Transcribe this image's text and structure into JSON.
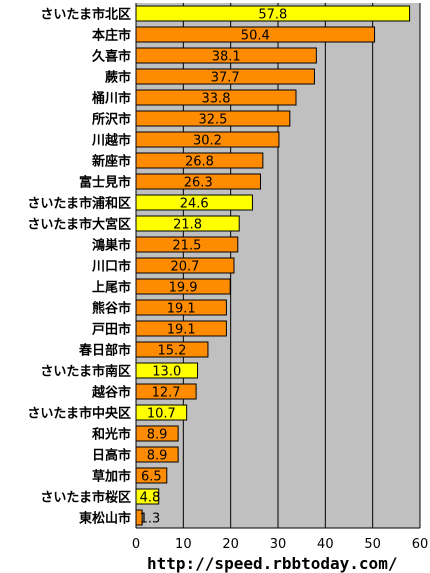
{
  "chart_data": {
    "type": "bar",
    "orientation": "horizontal",
    "categories": [
      "さいたま市北区",
      "本庄市",
      "久喜市",
      "蕨市",
      "桶川市",
      "所沢市",
      "川越市",
      "新座市",
      "富士見市",
      "さいたま市浦和区",
      "さいたま市大宮区",
      "鴻巣市",
      "川口市",
      "上尾市",
      "熊谷市",
      "戸田市",
      "春日部市",
      "さいたま市南区",
      "越谷市",
      "さいたま市中央区",
      "和光市",
      "日高市",
      "草加市",
      "さいたま市桜区",
      "東松山市"
    ],
    "values": [
      57.8,
      50.4,
      38.1,
      37.7,
      33.8,
      32.5,
      30.2,
      26.8,
      26.3,
      24.6,
      21.8,
      21.5,
      20.7,
      19.9,
      19.1,
      19.1,
      15.2,
      13.0,
      12.7,
      10.7,
      8.9,
      8.9,
      6.5,
      4.8,
      1.3
    ],
    "value_labels": [
      "57.8",
      "50.4",
      "38.1",
      "37.7",
      "33.8",
      "32.5",
      "30.2",
      "26.8",
      "26.3",
      "24.6",
      "21.8",
      "21.5",
      "20.7",
      "19.9",
      "19.1",
      "19.1",
      "15.2",
      "13.0",
      "12.7",
      "10.7",
      "8.9",
      "8.9",
      "6.5",
      "4.8",
      "1.3"
    ],
    "highlight": [
      true,
      false,
      false,
      false,
      false,
      false,
      false,
      false,
      false,
      true,
      true,
      false,
      false,
      false,
      false,
      false,
      false,
      true,
      false,
      true,
      false,
      false,
      false,
      true,
      false
    ],
    "xlim": [
      0,
      60
    ],
    "xticks": [
      "0",
      "10",
      "20",
      "30",
      "40",
      "50",
      "60"
    ],
    "grid": true,
    "colors": {
      "bar": "#ff8c00",
      "bar_highlight": "#ffff00",
      "plot_background": "#c0c0c0",
      "grid": "#000000"
    }
  },
  "footer": {
    "text": "http://speed.rbbtoday.com/"
  }
}
